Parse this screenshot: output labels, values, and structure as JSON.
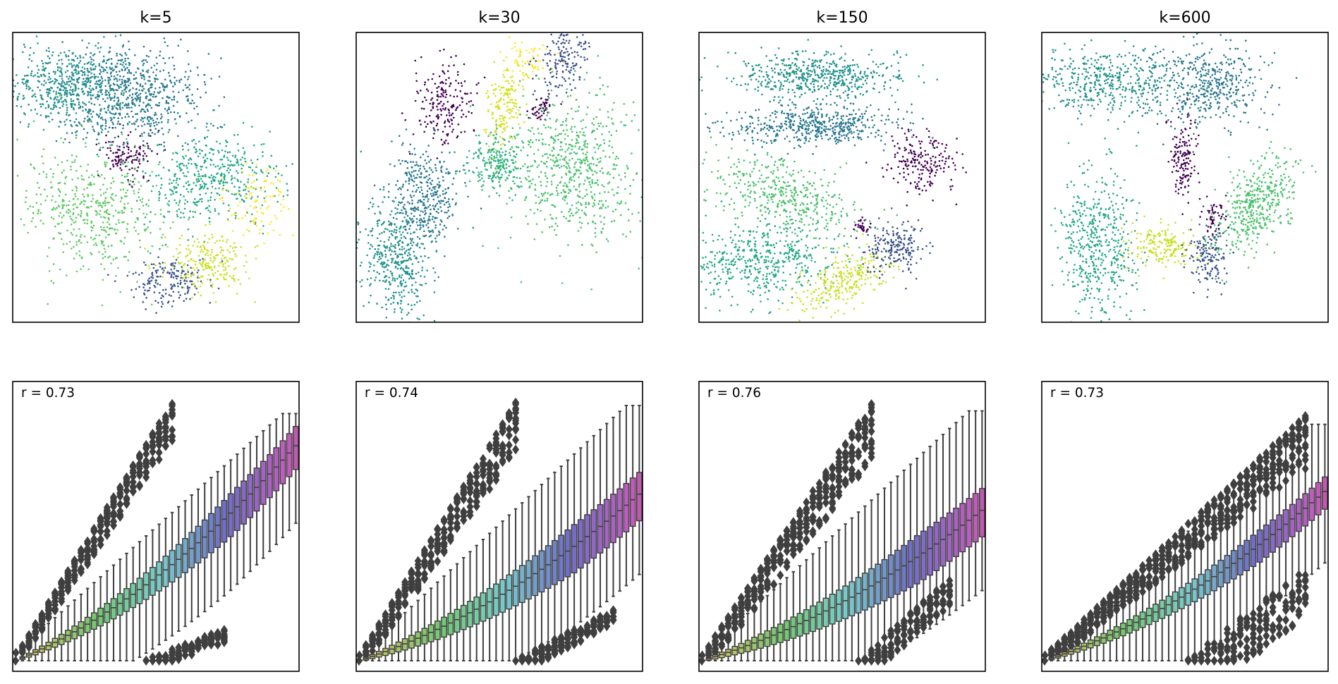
{
  "chart_data": [
    {
      "type": "scatter",
      "title": "k=5",
      "xticks": false,
      "yticks": false,
      "colormap": "viridis",
      "clusters": [
        {
          "name": "",
          "color": "#2a788e",
          "cx": 0.4,
          "cy": 0.22,
          "sx": 0.13,
          "sy": 0.08,
          "rot": 0,
          "n": 700
        },
        {
          "name": "",
          "color": "#21918c",
          "cx": 0.19,
          "cy": 0.18,
          "sx": 0.11,
          "sy": 0.07,
          "rot": 0,
          "n": 500
        },
        {
          "name": "",
          "color": "#440154",
          "cx": 0.4,
          "cy": 0.42,
          "sx": 0.04,
          "sy": 0.04,
          "rot": 0,
          "n": 120
        },
        {
          "name": "",
          "color": "#22a884",
          "cx": 0.69,
          "cy": 0.5,
          "sx": 0.12,
          "sy": 0.08,
          "rot": -5,
          "n": 450
        },
        {
          "name": "",
          "color": "#5ec962",
          "cx": 0.28,
          "cy": 0.6,
          "sx": 0.13,
          "sy": 0.11,
          "rot": 20,
          "n": 500
        },
        {
          "name": "",
          "color": "#3b528b",
          "cx": 0.54,
          "cy": 0.86,
          "sx": 0.06,
          "sy": 0.04,
          "rot": 0,
          "n": 180
        },
        {
          "name": "",
          "color": "#c8e020",
          "cx": 0.68,
          "cy": 0.79,
          "sx": 0.07,
          "sy": 0.05,
          "rot": 0,
          "n": 220
        },
        {
          "name": "",
          "color": "#fde725",
          "cx": 0.85,
          "cy": 0.6,
          "sx": 0.06,
          "sy": 0.06,
          "rot": 0,
          "n": 100
        }
      ]
    },
    {
      "type": "scatter",
      "title": "k=30",
      "xticks": false,
      "yticks": false,
      "colormap": "viridis",
      "clusters": [
        {
          "name": "",
          "color": "#440154",
          "cx": 0.31,
          "cy": 0.25,
          "sx": 0.05,
          "sy": 0.07,
          "rot": 0,
          "n": 200
        },
        {
          "name": "",
          "color": "#d2e21b",
          "cx": 0.52,
          "cy": 0.25,
          "sx": 0.03,
          "sy": 0.08,
          "rot": 10,
          "n": 180
        },
        {
          "name": "",
          "color": "#fde725",
          "cx": 0.6,
          "cy": 0.1,
          "sx": 0.04,
          "sy": 0.04,
          "rot": 0,
          "n": 60
        },
        {
          "name": "",
          "color": "#3b528b",
          "cx": 0.73,
          "cy": 0.09,
          "sx": 0.04,
          "sy": 0.06,
          "rot": 25,
          "n": 160
        },
        {
          "name": "",
          "color": "#440154",
          "cx": 0.65,
          "cy": 0.26,
          "sx": 0.02,
          "sy": 0.02,
          "rot": 0,
          "n": 50
        },
        {
          "name": "",
          "color": "#4ac16d",
          "cx": 0.76,
          "cy": 0.46,
          "sx": 0.11,
          "sy": 0.13,
          "rot": -10,
          "n": 650
        },
        {
          "name": "",
          "color": "#2db27d",
          "cx": 0.48,
          "cy": 0.45,
          "sx": 0.05,
          "sy": 0.05,
          "rot": 0,
          "n": 220
        },
        {
          "name": "",
          "color": "#2a788e",
          "cx": 0.24,
          "cy": 0.57,
          "sx": 0.06,
          "sy": 0.09,
          "rot": -15,
          "n": 380
        },
        {
          "name": "",
          "color": "#21918c",
          "cx": 0.14,
          "cy": 0.78,
          "sx": 0.06,
          "sy": 0.11,
          "rot": -10,
          "n": 420
        }
      ]
    },
    {
      "type": "scatter",
      "title": "k=150",
      "xticks": false,
      "yticks": false,
      "colormap": "viridis",
      "clusters": [
        {
          "name": "",
          "color": "#21918c",
          "cx": 0.42,
          "cy": 0.15,
          "sx": 0.15,
          "sy": 0.04,
          "rot": 0,
          "n": 520
        },
        {
          "name": "",
          "color": "#2a788e",
          "cx": 0.4,
          "cy": 0.32,
          "sx": 0.15,
          "sy": 0.035,
          "rot": 0,
          "n": 520
        },
        {
          "name": "",
          "color": "#440154",
          "cx": 0.77,
          "cy": 0.45,
          "sx": 0.06,
          "sy": 0.06,
          "rot": -20,
          "n": 200
        },
        {
          "name": "",
          "color": "#4ac16d",
          "cx": 0.31,
          "cy": 0.57,
          "sx": 0.14,
          "sy": 0.06,
          "rot": 18,
          "n": 420
        },
        {
          "name": "",
          "color": "#22a884",
          "cx": 0.22,
          "cy": 0.79,
          "sx": 0.14,
          "sy": 0.07,
          "rot": -5,
          "n": 500
        },
        {
          "name": "",
          "color": "#c8e020",
          "cx": 0.51,
          "cy": 0.85,
          "sx": 0.09,
          "sy": 0.04,
          "rot": -25,
          "n": 260
        },
        {
          "name": "",
          "color": "#3b528b",
          "cx": 0.68,
          "cy": 0.74,
          "sx": 0.05,
          "sy": 0.04,
          "rot": 0,
          "n": 200
        },
        {
          "name": "",
          "color": "#440154",
          "cx": 0.57,
          "cy": 0.67,
          "sx": 0.015,
          "sy": 0.015,
          "rot": 0,
          "n": 30
        }
      ]
    },
    {
      "type": "scatter",
      "title": "k=600",
      "xticks": false,
      "yticks": false,
      "colormap": "viridis",
      "clusters": [
        {
          "name": "",
          "color": "#21918c",
          "cx": 0.23,
          "cy": 0.17,
          "sx": 0.13,
          "sy": 0.06,
          "rot": 0,
          "n": 450
        },
        {
          "name": "",
          "color": "#2a788e",
          "cx": 0.58,
          "cy": 0.18,
          "sx": 0.1,
          "sy": 0.07,
          "rot": 0,
          "n": 450
        },
        {
          "name": "",
          "color": "#440154",
          "cx": 0.49,
          "cy": 0.43,
          "sx": 0.025,
          "sy": 0.07,
          "rot": 0,
          "n": 150
        },
        {
          "name": "",
          "color": "#22a884",
          "cx": 0.2,
          "cy": 0.73,
          "sx": 0.07,
          "sy": 0.12,
          "rot": 0,
          "n": 500
        },
        {
          "name": "",
          "color": "#4ac16d",
          "cx": 0.75,
          "cy": 0.6,
          "sx": 0.1,
          "sy": 0.05,
          "rot": -55,
          "n": 450
        },
        {
          "name": "",
          "color": "#c8e020",
          "cx": 0.42,
          "cy": 0.74,
          "sx": 0.06,
          "sy": 0.04,
          "rot": 0,
          "n": 180
        },
        {
          "name": "",
          "color": "#3b528b",
          "cx": 0.58,
          "cy": 0.77,
          "sx": 0.035,
          "sy": 0.05,
          "rot": 0,
          "n": 150
        },
        {
          "name": "",
          "color": "#440154",
          "cx": 0.6,
          "cy": 0.63,
          "sx": 0.02,
          "sy": 0.03,
          "rot": 0,
          "n": 50
        }
      ]
    },
    {
      "type": "box",
      "annotation": "r = 0.73",
      "xticks": false,
      "yticks": false,
      "n_boxes": 44,
      "median_start": 0.0,
      "median_end": 0.8,
      "iqr_start": 0.005,
      "iqr_end": 0.16,
      "whisker_top_start": 0.03,
      "whisker_top_end": 0.92,
      "upper_outlier_band": {
        "start": 0.02,
        "end": 1.0,
        "thickness": 0.17,
        "until_fraction": 0.58
      },
      "lower_outlier_band": {
        "start": 0.0,
        "end": 0.12,
        "from_fraction": 0.45,
        "until_fraction": 0.75,
        "thickness": 0.05
      },
      "palette": "husl"
    },
    {
      "type": "box",
      "annotation": "r = 0.74",
      "xticks": false,
      "yticks": false,
      "n_boxes": 44,
      "median_start": 0.0,
      "median_end": 0.62,
      "iqr_start": 0.005,
      "iqr_end": 0.18,
      "whisker_top_start": 0.02,
      "whisker_top_end": 0.95,
      "upper_outlier_band": {
        "start": 0.02,
        "end": 1.0,
        "thickness": 0.22,
        "until_fraction": 0.58
      },
      "lower_outlier_band": {
        "start": 0.0,
        "end": 0.2,
        "from_fraction": 0.55,
        "until_fraction": 0.92,
        "thickness": 0.06
      },
      "palette": "husl"
    },
    {
      "type": "box",
      "annotation": "r = 0.76",
      "xticks": false,
      "yticks": false,
      "n_boxes": 44,
      "median_start": 0.0,
      "median_end": 0.56,
      "iqr_start": 0.005,
      "iqr_end": 0.18,
      "whisker_top_start": 0.02,
      "whisker_top_end": 0.93,
      "upper_outlier_band": {
        "start": 0.02,
        "end": 0.98,
        "thickness": 0.24,
        "until_fraction": 0.62
      },
      "lower_outlier_band": {
        "start": 0.0,
        "end": 0.32,
        "from_fraction": 0.55,
        "until_fraction": 0.9,
        "thickness": 0.1
      },
      "palette": "husl"
    },
    {
      "type": "box",
      "annotation": "r = 0.73",
      "xticks": false,
      "yticks": false,
      "n_boxes": 44,
      "median_start": 0.0,
      "median_end": 0.63,
      "iqr_start": 0.005,
      "iqr_end": 0.12,
      "whisker_top_start": 0.02,
      "whisker_top_end": 0.88,
      "upper_outlier_band": {
        "start": 0.02,
        "end": 0.93,
        "thickness": 0.16,
        "until_fraction": 0.95
      },
      "lower_outlier_band": {
        "start": 0.0,
        "end": 0.36,
        "from_fraction": 0.5,
        "until_fraction": 0.95,
        "thickness": 0.18
      },
      "palette": "husl"
    }
  ]
}
